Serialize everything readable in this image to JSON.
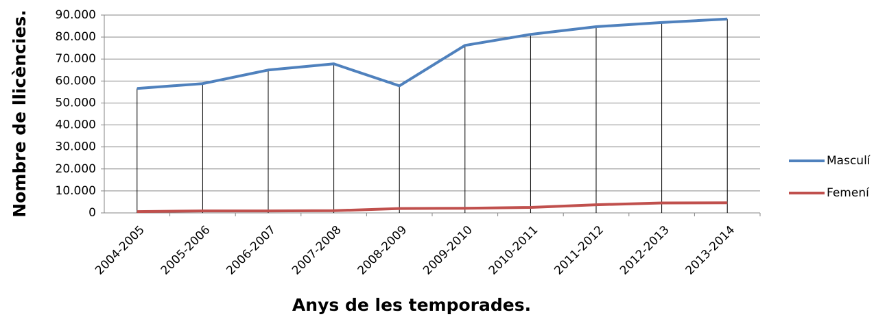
{
  "chart_data": {
    "type": "line",
    "x_label": "Anys de les temporades.",
    "y_label": "Nombre de llicències.",
    "categories": [
      "2004-2005",
      "2005-2006",
      "2006-2007",
      "2007-2008",
      "2008-2009",
      "2009-2010",
      "2010-2011",
      "2011-2012",
      "2012-2013",
      "2013-2014"
    ],
    "series": [
      {
        "name": "Masculí",
        "color": "#4f81bd",
        "values": [
          56600,
          58800,
          65000,
          67800,
          57800,
          76200,
          81200,
          84700,
          86600,
          88200
        ]
      },
      {
        "name": "Femení",
        "color": "#c0504d",
        "values": [
          600,
          900,
          900,
          1000,
          2000,
          2100,
          2500,
          3700,
          4500,
          4600
        ]
      }
    ],
    "ylim": [
      0,
      90000
    ],
    "yticks": [
      0,
      {
        "value": 10000,
        "label": "10.000"
      },
      {
        "value": 20000,
        "label": "20.000"
      },
      {
        "value": 30000,
        "label": "30.000"
      },
      {
        "value": 40000,
        "label": "40.000"
      },
      {
        "value": 50000,
        "label": "50.000"
      },
      {
        "value": 60000,
        "label": "60.000"
      },
      {
        "value": 70000,
        "label": "70.000"
      },
      {
        "value": 80000,
        "label": "80.000"
      },
      {
        "value": 90000,
        "label": "90.000"
      }
    ],
    "grid": true,
    "drop_lines": true,
    "legend": "right"
  }
}
